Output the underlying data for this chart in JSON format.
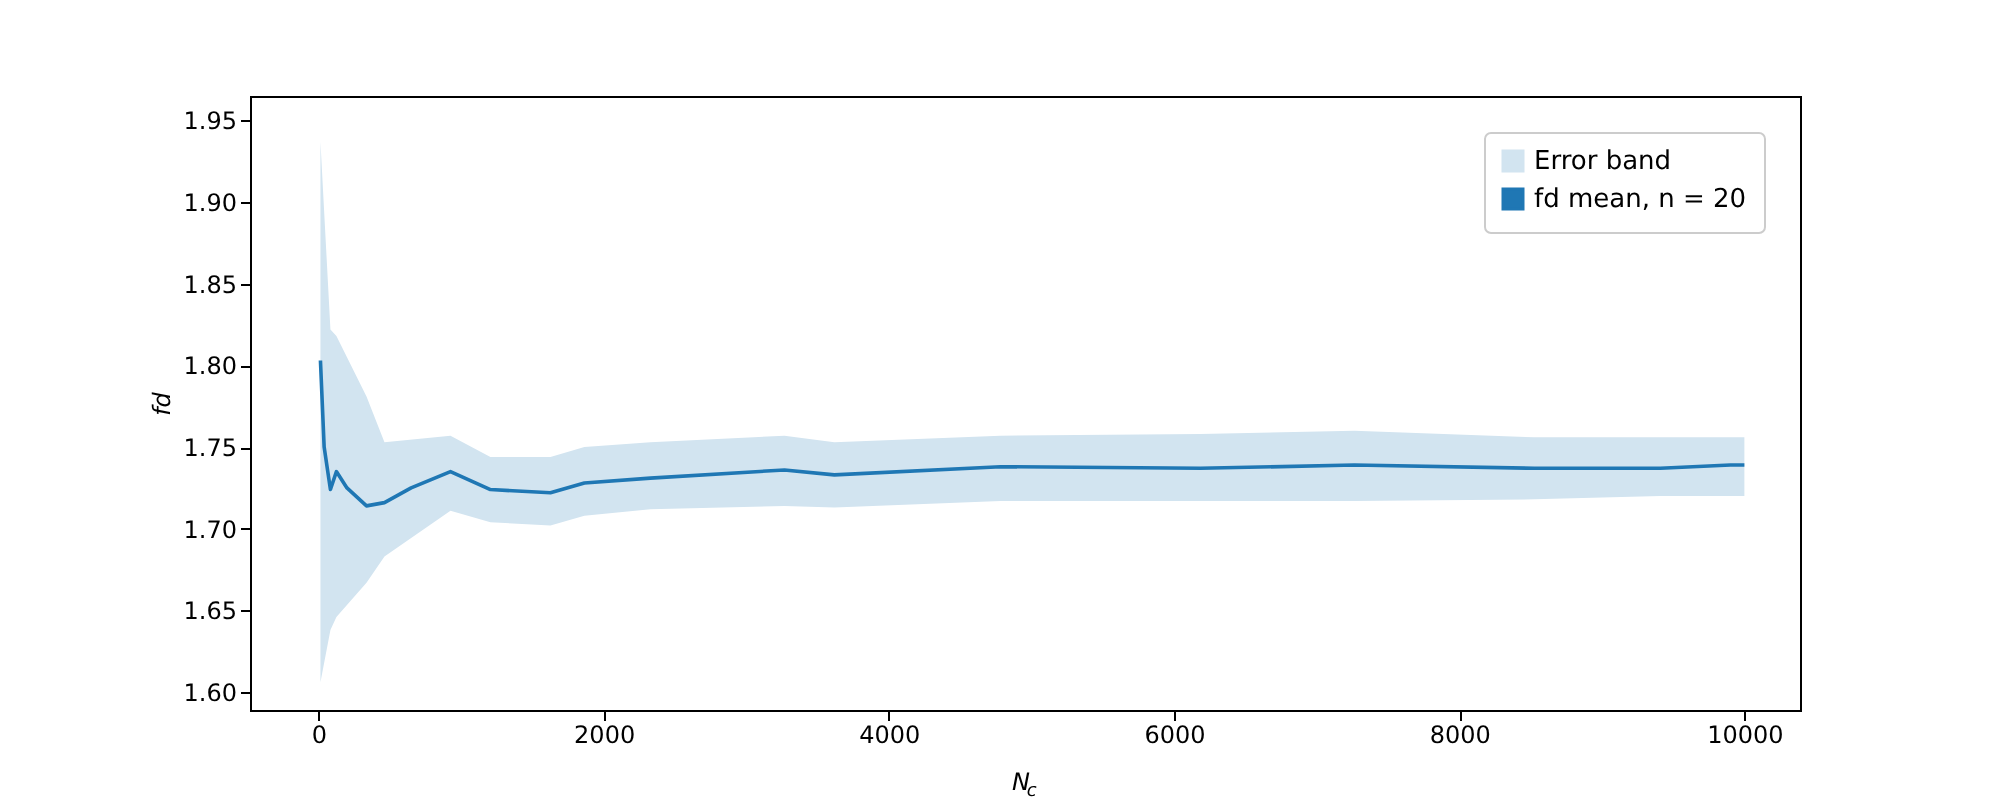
{
  "chart_data": {
    "type": "line",
    "xlabel": "N$_{c}$",
    "ylabel": "fd",
    "xlim": [
      -480,
      10390
    ],
    "ylim": [
      1.589,
      1.965
    ],
    "xticks": [
      0,
      2000,
      4000,
      6000,
      8000,
      10000
    ],
    "yticks": [
      {
        "value": 1.6,
        "label": "1.60"
      },
      1.65,
      {
        "value": 1.7,
        "label": "1.70"
      },
      1.75,
      {
        "value": 1.8,
        "label": "1.80"
      },
      1.85,
      {
        "value": 1.9,
        "label": "1.90"
      },
      1.95
    ],
    "grid": false,
    "legend": "top right",
    "line_style": "solid",
    "marker": "none",
    "series": [
      {
        "type": "area",
        "name": "Error band",
        "color": "#d2e4f0",
        "x": [
          14,
          84,
          126,
          337,
          463,
          926,
          1206,
          1627,
          1865,
          2328,
          3268,
          3618,
          4783,
          6185,
          7265,
          8527,
          9411,
          9902,
          10000
        ],
        "values": [
          null,
          null,
          null,
          null,
          null,
          null,
          null,
          null,
          null,
          null,
          null,
          null,
          null,
          null,
          null,
          null,
          null,
          null,
          null
        ],
        "lower": [
          1.606,
          1.638,
          1.646,
          1.667,
          1.683,
          1.711,
          1.704,
          1.702,
          1.708,
          1.712,
          1.714,
          1.713,
          1.717,
          1.717,
          1.717,
          1.718,
          1.72,
          1.72,
          1.72
        ],
        "upper": [
          1.937,
          1.822,
          1.818,
          1.781,
          1.753,
          1.757,
          1.744,
          1.744,
          1.75,
          1.753,
          1.757,
          1.753,
          1.757,
          1.758,
          1.76,
          1.756,
          1.756,
          1.756,
          1.756
        ]
      },
      {
        "type": "line",
        "name": "fd mean, n = 20",
        "color": "#1f77b4",
        "x": [
          14,
          40,
          84,
          126,
          200,
          337,
          463,
          650,
          926,
          1206,
          1627,
          1865,
          2328,
          3268,
          3618,
          4783,
          6185,
          7265,
          8527,
          9411,
          9902,
          10000
        ],
        "values": [
          1.803,
          1.75,
          1.724,
          1.735,
          1.725,
          1.714,
          1.716,
          1.725,
          1.735,
          1.724,
          1.722,
          1.728,
          1.731,
          1.736,
          1.733,
          1.738,
          1.737,
          1.739,
          1.737,
          1.737,
          1.739,
          1.739
        ]
      }
    ]
  }
}
